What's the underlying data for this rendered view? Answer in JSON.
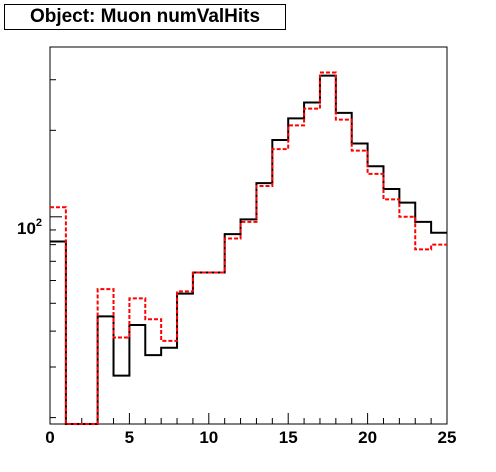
{
  "chart_data": {
    "type": "histogram",
    "title": "Object: Muon numValHits",
    "xlabel": "",
    "ylabel": "",
    "xlim": [
      0,
      25
    ],
    "y_scale": "log",
    "ylim": [
      19,
      390
    ],
    "grid": false,
    "bin_edges": [
      0,
      1,
      2,
      3,
      4,
      5,
      6,
      7,
      8,
      9,
      10,
      11,
      12,
      13,
      14,
      15,
      16,
      17,
      18,
      19,
      20,
      21,
      22,
      23,
      24,
      25
    ],
    "x_tick_labels": [
      "0",
      "5",
      "10",
      "15",
      "20",
      "25"
    ],
    "y_tick_labels": [
      {
        "base": "10",
        "exp": "2"
      }
    ],
    "series": [
      {
        "style": "solid",
        "color": "#000000",
        "values": [
          82,
          19,
          19,
          45,
          28,
          42,
          33,
          35,
          54,
          64,
          64,
          87,
          98,
          131,
          185,
          220,
          250,
          310,
          230,
          180,
          150,
          125,
          112,
          96,
          88
        ]
      },
      {
        "style": "dashed",
        "color": "#ff0000",
        "values": [
          108,
          19,
          19,
          56,
          38,
          52,
          44,
          37,
          55,
          64,
          64,
          84,
          96,
          128,
          172,
          208,
          238,
          318,
          218,
          170,
          141,
          115,
          100,
          77,
          80
        ]
      }
    ]
  }
}
